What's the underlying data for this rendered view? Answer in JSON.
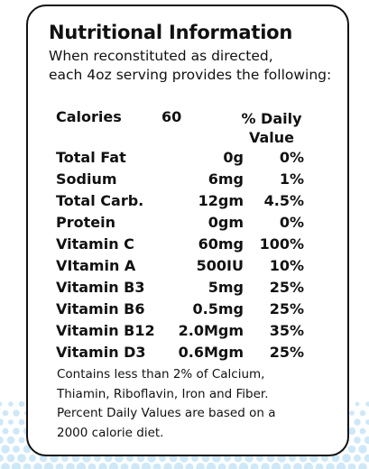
{
  "title": "Nutritional Information",
  "subtitle_lines": [
    "When reconstituted as directed,",
    "each 4oz serving provides the following:"
  ],
  "calories": {
    "label": "Calories",
    "value": "60"
  },
  "daily_value_header": [
    "% Daily",
    "Value"
  ],
  "nutrients": [
    {
      "name": "Total Fat",
      "amount": "0g",
      "dv": "0%"
    },
    {
      "name": "Sodium",
      "amount": "6mg",
      "dv": "1%"
    },
    {
      "name": "Total Carb.",
      "amount": "12gm",
      "dv": "4.5%"
    },
    {
      "name": "Protein",
      "amount": "0gm",
      "dv": "0%"
    },
    {
      "name": "Vitamin C",
      "amount": "60mg",
      "dv": "100%"
    },
    {
      "name": "VItamin A",
      "amount": "500IU",
      "dv": "10%"
    },
    {
      "name": "Vitamin B3",
      "amount": "5mg",
      "dv": "25%"
    },
    {
      "name": "Vitamin B6",
      "amount": "0.5mg",
      "dv": "25%"
    },
    {
      "name": "Vitamin B12",
      "amount": "2.0Mgm",
      "dv": "35%"
    },
    {
      "name": "Vitamin D3",
      "amount": "0.6Mgm",
      "dv": "25%"
    }
  ],
  "footnote_lines": [
    "Contains less than 2% of Calcium,",
    "Thiamin, Riboflavin, Iron and Fiber.",
    "Percent Daily Values are based on a",
    "2000 calorie diet."
  ],
  "colors": {
    "text": "#111111",
    "border": "#111111",
    "dots": "#cde8f8",
    "background": "#ffffff"
  }
}
